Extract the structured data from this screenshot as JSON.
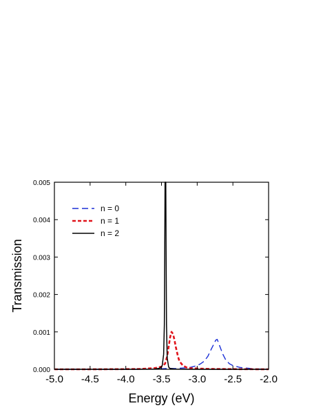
{
  "chart_data": {
    "type": "line",
    "xlabel": "Energy (eV)",
    "ylabel": "Transmission",
    "xlim": [
      -5.0,
      -2.0
    ],
    "ylim": [
      0.0,
      0.005
    ],
    "xticks": [
      "-5.0",
      "-4.5",
      "-4.0",
      "-3.5",
      "-3.0",
      "-2.5",
      "-2.0"
    ],
    "yticks": [
      "0.000",
      "0.001",
      "0.002",
      "0.003",
      "0.004",
      "0.005"
    ],
    "grid": false,
    "legend_position": "top-left",
    "series": [
      {
        "name": "n = 0",
        "color": "#1a2fd6",
        "style": "dashed",
        "x": [
          -5.0,
          -4.0,
          -3.6,
          -3.45,
          -3.4,
          -3.3,
          -3.1,
          -3.0,
          -2.95,
          -2.9,
          -2.85,
          -2.8,
          -2.76,
          -2.74,
          -2.72,
          -2.7,
          -2.67,
          -2.64,
          -2.6,
          -2.55,
          -2.5,
          -2.4,
          -2.3,
          -2.2,
          -2.0
        ],
        "y": [
          0.0,
          0.0,
          5e-06,
          2e-05,
          2.5e-05,
          2e-05,
          5e-05,
          0.0001,
          0.00015,
          0.00022,
          0.00035,
          0.00055,
          0.0007,
          0.00078,
          0.0008,
          0.0007,
          0.00055,
          0.0004,
          0.00025,
          0.00015,
          0.0001,
          5e-05,
          3e-05,
          1e-05,
          0.0
        ]
      },
      {
        "name": "n = 1",
        "color": "#e0131a",
        "style": "short-dash",
        "x": [
          -5.0,
          -4.5,
          -4.0,
          -3.8,
          -3.6,
          -3.5,
          -3.45,
          -3.42,
          -3.4,
          -3.38,
          -3.36,
          -3.34,
          -3.32,
          -3.3,
          -3.27,
          -3.25,
          -3.2,
          -3.15,
          -3.1,
          -3.0,
          -2.8,
          -2.5,
          -2.0
        ],
        "y": [
          0.0,
          0.0,
          5e-06,
          1e-05,
          3e-05,
          7e-05,
          0.00015,
          0.00035,
          0.0006,
          0.00085,
          0.001,
          0.00095,
          0.0008,
          0.0006,
          0.00035,
          0.00022,
          0.0001,
          5e-05,
          3e-05,
          2e-05,
          1e-05,
          5e-06,
          0.0
        ]
      },
      {
        "name": "n = 2",
        "color": "#000000",
        "style": "solid",
        "x": [
          -5.0,
          -4.0,
          -3.6,
          -3.52,
          -3.49,
          -3.47,
          -3.46,
          -3.455,
          -3.45,
          -3.445,
          -3.44,
          -3.435,
          -3.43,
          -3.42,
          -3.4,
          -3.38,
          -3.3,
          -3.0,
          -2.0
        ],
        "y": [
          0.0,
          0.0,
          5e-06,
          3e-05,
          0.0001,
          0.0004,
          0.0012,
          0.003,
          0.005,
          0.005,
          0.005,
          0.003,
          0.0012,
          0.0003,
          6e-05,
          2e-05,
          5e-06,
          0.0,
          0.0
        ]
      }
    ]
  }
}
